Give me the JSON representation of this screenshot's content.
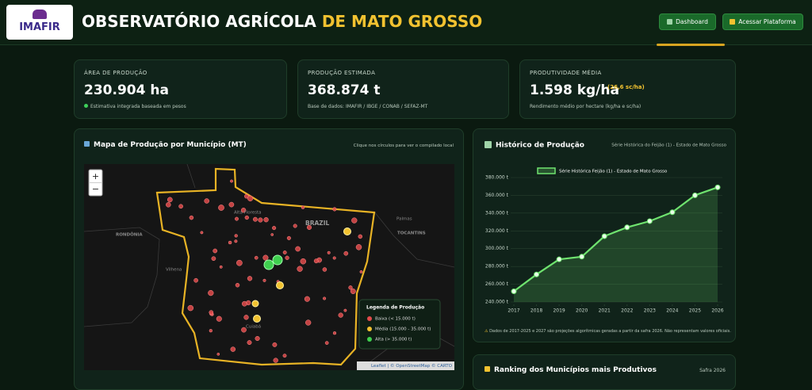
{
  "header": {
    "logo": "IMAFIR",
    "title_main": "OBSERVATÓRIO AGRÍCOLA",
    "title_highlight": "DE MATO GROSSO",
    "buttons": [
      "Dashboard",
      "Acessar Plataforma"
    ]
  },
  "kpis": [
    {
      "label": "ÁREA DE PRODUÇÃO",
      "value": "230.904 ha",
      "note": "Estimativa integrada baseada em pesos"
    },
    {
      "label": "PRODUÇÃO ESTIMADA",
      "value": "368.874 t",
      "note": "Base de dados: IMAFIR / IBGE / CONAB / SEFAZ-MT"
    },
    {
      "label": "PRODUTIVIDADE MÉDIA",
      "value": "1.598 kg/ha",
      "extra": "(26,6 sc/ha)",
      "note": "Rendimento médio por hectare (kg/ha e sc/ha)"
    }
  ],
  "map_panel": {
    "title": "Mapa de Produção por Município (MT)",
    "hint": "Clique nos círculos para ver o compilado local",
    "zoom_in": "+",
    "zoom_out": "−",
    "labels": [
      "Alta Floresta",
      "BRAZIL",
      "RONDÔNIA",
      "TOCANTINS",
      "Palmas",
      "Vilhena",
      "Cuiabá"
    ],
    "legend": {
      "title": "Legenda de Produção",
      "items": [
        "Baixa (< 15.000 t)",
        "Média (15.000 - 35.000 t)",
        "Alta (> 35.000 t)"
      ]
    },
    "attribution": "Leaflet | © OpenStreetMap © CARTO"
  },
  "chart_data": {
    "type": "line",
    "title": "Histórico de Produção",
    "subtitle": "Série Histórica do Feijão (1) - Estado de Mato Grosso",
    "x": [
      2017,
      2018,
      2019,
      2020,
      2021,
      2022,
      2023,
      2024,
      2025,
      2026
    ],
    "xlim": [
      2017,
      2026
    ],
    "xticks": [
      2017,
      2018,
      2019,
      2020,
      2021,
      2022,
      2023,
      2024,
      2025,
      2026
    ],
    "ylim": [
      240000,
      380000
    ],
    "yticks": [
      {
        "value": 240000,
        "label": "240.000 t"
      },
      {
        "value": 260000,
        "label": "260.000 t"
      },
      {
        "value": 280000,
        "label": "280.000 t"
      },
      {
        "value": 300000,
        "label": "300.000 t"
      },
      {
        "value": 320000,
        "label": "320.000 t"
      },
      {
        "value": 340000,
        "label": "340.000 t"
      },
      {
        "value": 360000,
        "label": "360.000 t"
      },
      {
        "value": 380000,
        "label": "380.000 t"
      }
    ],
    "grid": true,
    "series": [
      {
        "name": "Série Histórica Feijão (1) - Estado de Mato Grosso",
        "color": "#6fe36f",
        "values": [
          252000,
          271000,
          288000,
          291000,
          314000,
          324000,
          331000,
          341000,
          360000,
          369000
        ]
      }
    ],
    "footnote": "Dados de 2017-2025 e 2027 são projeções algorítmicas geradas a partir da safra 2026. Não representam valores oficiais."
  },
  "ranking": {
    "title": "Ranking dos Municípios mais Produtivos",
    "season": "Safra 2026"
  }
}
